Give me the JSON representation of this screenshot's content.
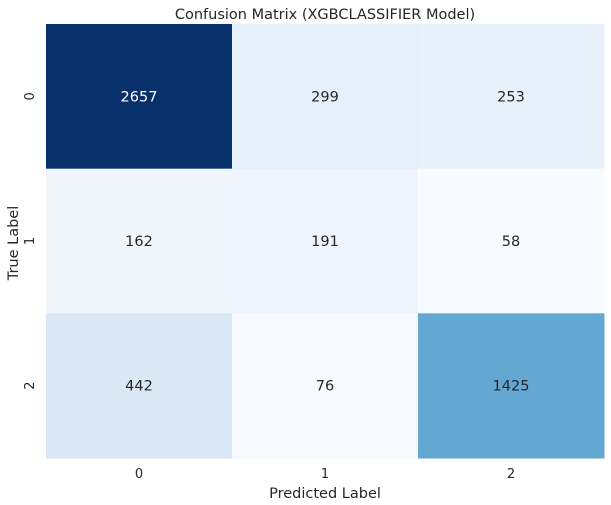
{
  "chart_data": {
    "type": "heatmap",
    "title": "Confusion Matrix (XGBCLASSIFIER Model)",
    "xlabel": "Predicted Label",
    "ylabel": "True Label",
    "x_categories": [
      "0",
      "1",
      "2"
    ],
    "y_categories": [
      "0",
      "1",
      "2"
    ],
    "values": [
      [
        2657,
        299,
        253
      ],
      [
        162,
        191,
        58
      ],
      [
        442,
        76,
        1425
      ]
    ],
    "colormap": "Blues",
    "color_min": "#f7fbff",
    "color_max": "#08306b",
    "colorbar": false,
    "grid": false
  }
}
